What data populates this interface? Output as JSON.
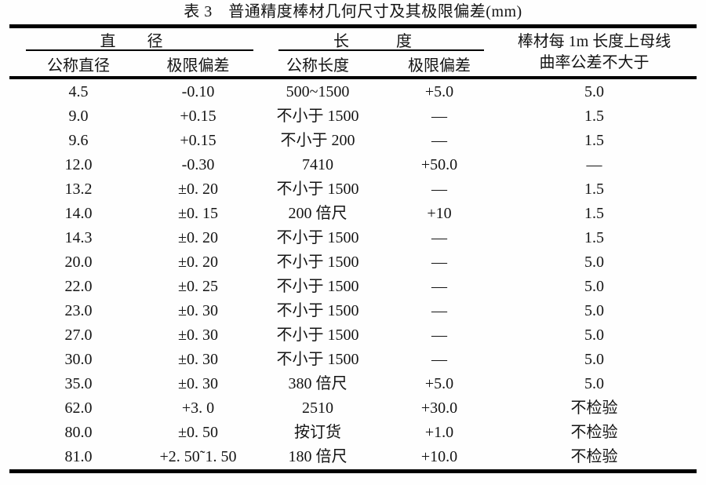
{
  "title": "表 3　普通精度棒材几何尺寸及其极限偏差(mm)",
  "table": {
    "groups": {
      "diameter": "直　　径",
      "length": "长　　　度",
      "curvature_line1": "棒材每 1m 长度上母线",
      "curvature_line2": "曲率公差不大于"
    },
    "subheaders": {
      "nominal_diameter": "公称直径",
      "diameter_deviation": "极限偏差",
      "nominal_length": "公称长度",
      "length_deviation": "极限偏差"
    },
    "rows": [
      [
        "4.5",
        "-0.10",
        "500~1500",
        "+5.0",
        "5.0"
      ],
      [
        "9.0",
        "+0.15",
        "不小于 1500",
        "—",
        "1.5"
      ],
      [
        "9.6",
        "+0.15",
        "不小于 200",
        "—",
        "1.5"
      ],
      [
        "12.0",
        "-0.30",
        "7410",
        "+50.0",
        "—"
      ],
      [
        "13.2",
        "±0. 20",
        "不小于 1500",
        "—",
        "1.5"
      ],
      [
        "14.0",
        "±0. 15",
        "200 倍尺",
        "+10",
        "1.5"
      ],
      [
        "14.3",
        "±0. 20",
        "不小于 1500",
        "—",
        "1.5"
      ],
      [
        "20.0",
        "±0. 20",
        "不小于 1500",
        "—",
        "5.0"
      ],
      [
        "22.0",
        "±0. 25",
        "不小于 1500",
        "—",
        "5.0"
      ],
      [
        "23.0",
        "±0. 30",
        "不小于 1500",
        "—",
        "5.0"
      ],
      [
        "27.0",
        "±0. 30",
        "不小于 1500",
        "—",
        "5.0"
      ],
      [
        "30.0",
        "±0. 30",
        "不小于 1500",
        "—",
        "5.0"
      ],
      [
        "35.0",
        "±0. 30",
        "380 倍尺",
        "+5.0",
        "5.0"
      ],
      [
        "62.0",
        "+3. 0",
        "2510",
        "+30.0",
        "不检验"
      ],
      [
        "80.0",
        "±0. 50",
        "按订货",
        "+1.0",
        "不检验"
      ],
      [
        "81.0",
        "+2. 50˜1. 50",
        "180 倍尺",
        "+10.0",
        "不检验"
      ]
    ]
  }
}
